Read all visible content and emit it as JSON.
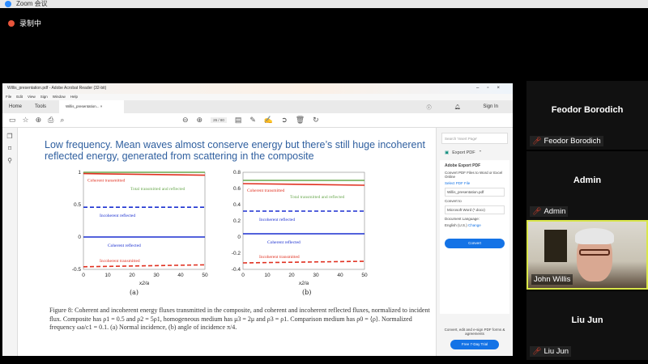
{
  "zoom": {
    "window_title": "Zoom 会议",
    "recording": "录制中"
  },
  "acrobat": {
    "title": "Willis_presentation.pdf - Adobe Acrobat Reader (32-bit)",
    "menu": [
      "File",
      "Edit",
      "View",
      "Sign",
      "Window",
      "Help"
    ],
    "tabs": {
      "home": "Home",
      "tools": "Tools",
      "doc": "Willis_presentation... ×",
      "sign_in": "Sign In"
    },
    "page_indicator": "26 / 80",
    "slide_title": "Low frequency. Mean waves almost conserve energy but there’s still huge incoherent reflected energy, generated from scattering in the composite",
    "caption": "Figure 8: Coherent and incoherent energy fluxes transmitted in the composite, and coherent and incoherent reflected fluxes, normalized to incident flux. Composite has ρ1 = 0.5 and ρ2 = 5ρ1, homogeneous medium has μ3 = 2μ and ρ3 = ρ1. Comparison medium has ρ0 = ⟨ρ⟩. Normalized frequency ωa/c1 = 0.1. (a) Normal incidence, (b) angle of incidence π/4.",
    "pane": {
      "search_placeholder": "Search 'Insert Page'",
      "export_label": "Export PDF",
      "card_title": "Adobe Export PDF",
      "card_desc": "Convert PDF Files to Word or Excel Online",
      "select_label": "Select PDF File",
      "file": "Willis_presentation.pdf",
      "convert_to": "Convert to",
      "format": "Microsoft Word (*.docx)",
      "lang_label": "Document Language:",
      "lang": "English (U.S.)",
      "change": "Change",
      "convert_btn": "Convert",
      "foot_text": "Convert, edit and e-sign PDF forms & agreements",
      "trial_btn": "Free 7-Day Trial"
    }
  },
  "chart_data": [
    {
      "type": "line",
      "subtitle": "(a)",
      "xlabel": "x2/a",
      "xlim": [
        0,
        50
      ],
      "ylim": [
        -0.5,
        1
      ],
      "xticks": [
        0,
        10,
        20,
        30,
        40,
        50
      ],
      "yticks": [
        -0.5,
        0,
        0.5,
        1
      ],
      "series": [
        {
          "name": "Total transmitted and reflected",
          "color": "#6aa84f",
          "style": "solid",
          "x": [
            0,
            50
          ],
          "y": [
            1.0,
            1.0
          ]
        },
        {
          "name": "Coherent transmitted",
          "color": "#e03020",
          "style": "solid",
          "x": [
            0,
            50
          ],
          "y": [
            0.98,
            0.955
          ]
        },
        {
          "name": "Incoherent reflected",
          "color": "#1a2fd0",
          "style": "dashed",
          "x": [
            0,
            50
          ],
          "y": [
            0.46,
            0.46
          ]
        },
        {
          "name": "Coherent reflected",
          "color": "#1a2fd0",
          "style": "solid",
          "x": [
            0,
            50
          ],
          "y": [
            0.0,
            0.0
          ]
        },
        {
          "name": "Incoherent transmitted",
          "color": "#e03020",
          "style": "dashed",
          "x": [
            0,
            50
          ],
          "y": [
            -0.46,
            -0.43
          ]
        }
      ]
    },
    {
      "type": "line",
      "subtitle": "(b)",
      "xlabel": "x2/a",
      "xlim": [
        0,
        50
      ],
      "ylim": [
        -0.4,
        0.8
      ],
      "xticks": [
        0,
        10,
        20,
        30,
        40,
        50
      ],
      "yticks": [
        -0.4,
        -0.2,
        0,
        0.2,
        0.4,
        0.6,
        0.8
      ],
      "series": [
        {
          "name": "Total transmitted and reflected",
          "color": "#6aa84f",
          "style": "solid",
          "x": [
            0,
            50
          ],
          "y": [
            0.7,
            0.7
          ]
        },
        {
          "name": "Coherent transmitted",
          "color": "#e03020",
          "style": "solid",
          "x": [
            0,
            50
          ],
          "y": [
            0.66,
            0.64
          ]
        },
        {
          "name": "Incoherent reflected",
          "color": "#1a2fd0",
          "style": "dashed",
          "x": [
            0,
            50
          ],
          "y": [
            0.32,
            0.32
          ]
        },
        {
          "name": "Coherent reflected",
          "color": "#1a2fd0",
          "style": "solid",
          "x": [
            0,
            50
          ],
          "y": [
            0.04,
            0.04
          ]
        },
        {
          "name": "Incoherent transmitted",
          "color": "#e03020",
          "style": "dashed",
          "x": [
            0,
            50
          ],
          "y": [
            -0.32,
            -0.3
          ]
        }
      ]
    }
  ],
  "participants": [
    {
      "name": "Feodor Borodich",
      "muted": true,
      "video": false
    },
    {
      "name": "Admin",
      "muted": true,
      "video": false
    },
    {
      "name": "John Willis",
      "muted": false,
      "video": true,
      "speaking": true
    },
    {
      "name": "Liu Jun",
      "muted": true,
      "video": false
    }
  ],
  "colors": {
    "accent": "#1473e6",
    "speaker_border": "#d9e64a",
    "slide_title": "#2f5f9f"
  }
}
